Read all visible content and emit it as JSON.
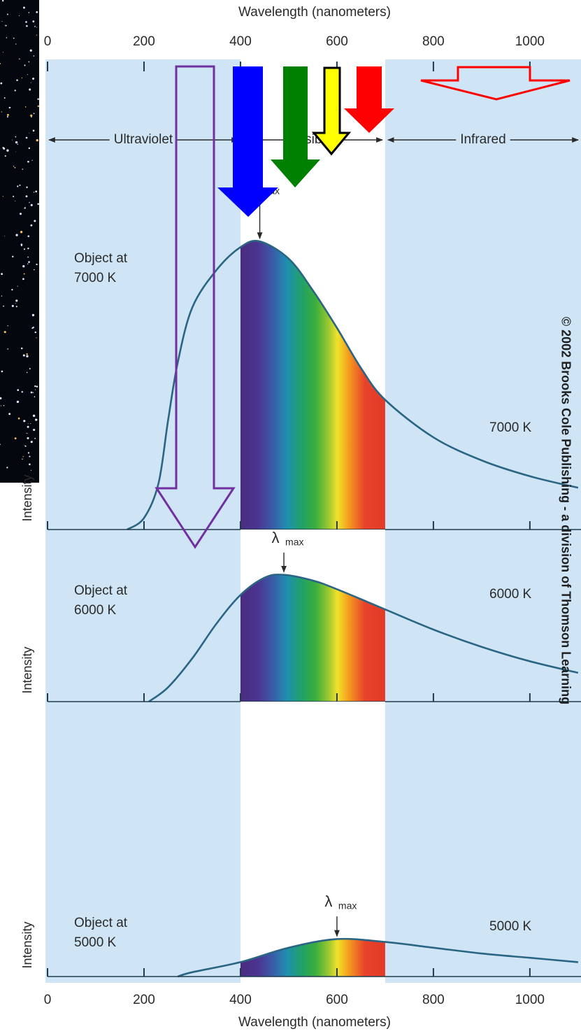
{
  "chart_data": [
    {
      "type": "line",
      "x_label": "Wavelength (nanometers)",
      "x_axis_position": "top",
      "xlim": [
        0,
        1106
      ],
      "xticks": [
        0,
        200,
        400,
        600,
        800,
        1000
      ],
      "ylim": [
        0,
        162.4
      ],
      "y_label": "Intensity",
      "object_label": [
        "Object at",
        "7000 K"
      ],
      "regions": [
        "Ultraviolet",
        "Visible",
        "Infrared"
      ],
      "visible_range": [
        400,
        700
      ],
      "background_color": "#cfe5f5",
      "peak": {
        "symbol": "λ",
        "subscript": "max",
        "x": 440
      },
      "x": [
        165,
        200,
        230,
        250,
        270,
        300,
        350,
        400,
        440,
        500,
        550,
        600,
        650,
        700,
        800,
        900,
        1000,
        1100
      ],
      "series": [
        {
          "name": "7000 K",
          "color": "#2b6584",
          "values": [
            0,
            4,
            16,
            38,
            58,
            77,
            90,
            98,
            100,
            94,
            83,
            70,
            56,
            45,
            32,
            24,
            18.5,
            14.5
          ]
        }
      ],
      "copyright": "© 2002 Brooks Cole Publishing - a division of Thomson Learning"
    },
    {
      "type": "line",
      "xlim": [
        0,
        1106
      ],
      "xticks": [
        0,
        200,
        400,
        600,
        800,
        1000
      ],
      "ylim": [
        0,
        59.7
      ],
      "y_label": "Intensity",
      "object_label": [
        "Object at",
        "6000 K"
      ],
      "visible_range": [
        400,
        700
      ],
      "peak": {
        "symbol": "λ",
        "subscript": "max",
        "x": 490
      },
      "x": [
        210,
        250,
        300,
        350,
        400,
        450,
        490,
        550,
        600,
        700,
        800,
        900,
        1000,
        1100
      ],
      "series": [
        {
          "name": "6000 K",
          "color": "#2b6584",
          "values": [
            0,
            5,
            15,
            27,
            37,
            43,
            44,
            42,
            39,
            32,
            25,
            19,
            14,
            10
          ]
        }
      ]
    },
    {
      "type": "line",
      "x_label": "Wavelength (nanometers)",
      "x_axis_position": "bottom",
      "xlim": [
        0,
        1106
      ],
      "xticks": [
        0,
        200,
        400,
        600,
        800,
        1000
      ],
      "ylim": [
        0,
        95.4
      ],
      "y_label": "Intensity",
      "object_label": [
        "Object at",
        "5000 K"
      ],
      "visible_range": [
        400,
        700
      ],
      "peak": {
        "symbol": "λ",
        "subscript": "max",
        "x": 600
      },
      "x": [
        270,
        300,
        400,
        500,
        600,
        700,
        800,
        900,
        1000,
        1100
      ],
      "series": [
        {
          "name": "5000 K",
          "color": "#2b6584",
          "values": [
            0,
            1.5,
            5,
            10,
            13,
            12,
            10,
            8,
            6.5,
            5
          ]
        }
      ]
    }
  ]
}
